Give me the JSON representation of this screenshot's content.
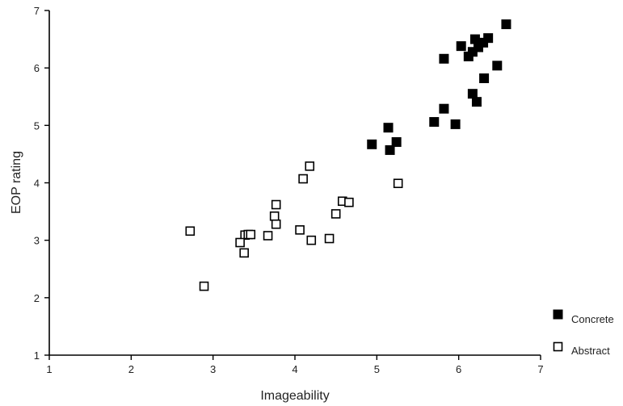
{
  "chart_data": {
    "type": "scatter",
    "title": "",
    "xlabel": "Imageability",
    "ylabel": "EOP rating",
    "xlim": [
      1,
      7
    ],
    "ylim": [
      1,
      7
    ],
    "xticks": [
      "1",
      "2",
      "3",
      "4",
      "5",
      "6",
      "7"
    ],
    "yticks": [
      "1",
      "2",
      "3",
      "4",
      "5",
      "6",
      "7"
    ],
    "grid": false,
    "legend_position": "bottom-right",
    "series": [
      {
        "name": "Concrete",
        "marker": "filled-square",
        "color": "#000000",
        "points": [
          [
            6.58,
            6.76
          ],
          [
            6.36,
            6.52
          ],
          [
            6.3,
            6.44
          ],
          [
            6.2,
            6.5
          ],
          [
            6.24,
            6.36
          ],
          [
            6.03,
            6.38
          ],
          [
            6.17,
            6.28
          ],
          [
            6.12,
            6.2
          ],
          [
            5.82,
            6.16
          ],
          [
            6.47,
            6.04
          ],
          [
            6.31,
            5.82
          ],
          [
            6.17,
            5.55
          ],
          [
            6.22,
            5.41
          ],
          [
            5.82,
            5.29
          ],
          [
            5.7,
            5.06
          ],
          [
            5.96,
            5.02
          ],
          [
            5.14,
            4.96
          ],
          [
            4.94,
            4.67
          ],
          [
            5.24,
            4.71
          ],
          [
            5.16,
            4.57
          ]
        ]
      },
      {
        "name": "Abstract",
        "marker": "open-square",
        "color": "#000000",
        "points": [
          [
            4.18,
            4.29
          ],
          [
            4.1,
            4.07
          ],
          [
            5.26,
            3.99
          ],
          [
            3.77,
            3.62
          ],
          [
            4.58,
            3.68
          ],
          [
            4.66,
            3.66
          ],
          [
            4.5,
            3.46
          ],
          [
            3.75,
            3.42
          ],
          [
            3.77,
            3.28
          ],
          [
            2.72,
            3.16
          ],
          [
            4.06,
            3.18
          ],
          [
            3.67,
            3.08
          ],
          [
            3.39,
            3.09
          ],
          [
            3.43,
            3.1
          ],
          [
            3.46,
            3.1
          ],
          [
            4.42,
            3.03
          ],
          [
            4.2,
            3.0
          ],
          [
            3.33,
            2.96
          ],
          [
            3.38,
            2.78
          ],
          [
            2.89,
            2.2
          ]
        ]
      }
    ]
  }
}
